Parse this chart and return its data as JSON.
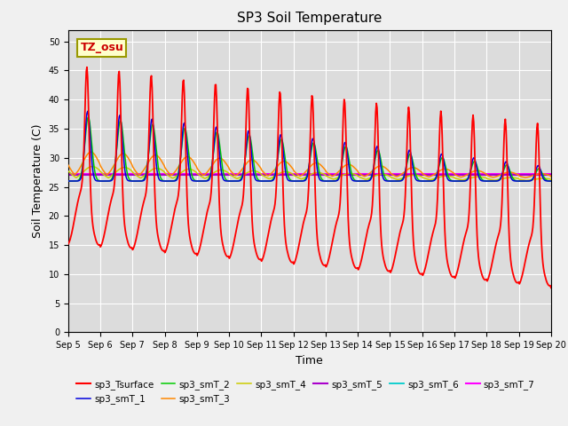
{
  "title": "SP3 Soil Temperature",
  "xlabel": "Time",
  "ylabel": "Soil Temperature (C)",
  "ylim": [
    0,
    52
  ],
  "yticks": [
    0,
    5,
    10,
    15,
    20,
    25,
    30,
    35,
    40,
    45,
    50
  ],
  "bg_color": "#dcdcdc",
  "fig_color": "#f0f0f0",
  "annotation_text": "TZ_osu",
  "annotation_color": "#cc0000",
  "annotation_bg": "#ffffcc",
  "annotation_border": "#999900",
  "colors": {
    "sp3_Tsurface": "#ff0000",
    "sp3_smT_1": "#0000dd",
    "sp3_smT_2": "#00cc00",
    "sp3_smT_3": "#ff8800",
    "sp3_smT_4": "#cccc00",
    "sp3_smT_5": "#aa00cc",
    "sp3_smT_6": "#00cccc",
    "sp3_smT_7": "#ff00ff"
  },
  "linewidths": {
    "sp3_Tsurface": 1.3,
    "sp3_smT_1": 1.1,
    "sp3_smT_2": 1.1,
    "sp3_smT_3": 1.1,
    "sp3_smT_4": 1.1,
    "sp3_smT_5": 1.5,
    "sp3_smT_6": 1.3,
    "sp3_smT_7": 1.5
  }
}
